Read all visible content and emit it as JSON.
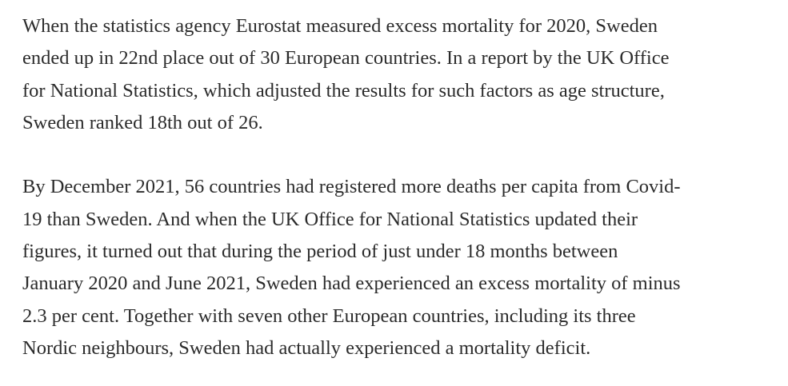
{
  "article": {
    "paragraphs": [
      {
        "lines": [
          "When the statistics agency Eurostat measured excess mortality for 2020, Sweden",
          "ended up in 22nd place out of 30 European countries. In a report by the UK Office",
          "for National Statistics, which adjusted the results for such factors as age structure,",
          "Sweden ranked 18th out of 26."
        ]
      },
      {
        "lines": [
          "By December 2021, 56 countries had registered more deaths per capita from Covid-",
          "19 than Sweden. And when the UK Office for National Statistics updated their",
          "figures, it turned out that during the period of just under 18 months between",
          "January 2020 and June 2021, Sweden had experienced an excess mortality of minus",
          "2.3 per cent. Together with seven other European countries, including its three",
          "Nordic neighbours, Sweden had actually experienced a mortality deficit."
        ]
      }
    ]
  }
}
